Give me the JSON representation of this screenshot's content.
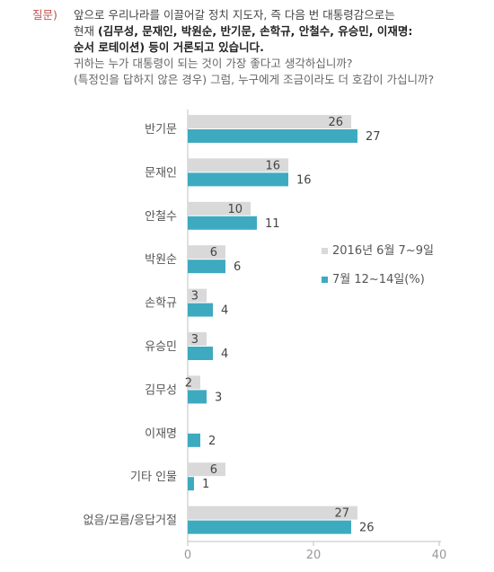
{
  "question": {
    "prefix": "질문)",
    "line1": "앞으로 우리나라를 이끌어갈 정치 지도자, 즉 다음 번 대통령감으로는",
    "line2_a": "현재 ",
    "line2_b": "(김무성, 문재인, 박원순, 반기문, 손학규, 안철수, 유승민, 이재명:",
    "line3": "순서 로테이션) 등이 거론되고 있습니다.",
    "line4": "귀하는 누가 대통령이 되는 것이 가장 좋다고 생각하십니까?",
    "line5": "(특정인을 답하지 않은 경우) 그럼, 누구에게 조금이라도 더 호감이 가십니까?"
  },
  "chart_data": {
    "type": "bar",
    "orientation": "horizontal",
    "categories": [
      "반기문",
      "문재인",
      "안철수",
      "박원순",
      "손학규",
      "유승민",
      "김무성",
      "이재명",
      "기타 인물",
      "없음/모름/응답거절"
    ],
    "series": [
      {
        "name": "2016년 6월 7~9일",
        "color": "#d9d9d9",
        "values": [
          26,
          16,
          10,
          6,
          3,
          3,
          2,
          null,
          6,
          27
        ]
      },
      {
        "name": "7월 12~14일(%)",
        "color": "#3daac0",
        "values": [
          27,
          16,
          11,
          6,
          4,
          4,
          3,
          2,
          1,
          26
        ]
      }
    ],
    "xlim": [
      0,
      40
    ],
    "xticks": [
      0,
      20,
      40
    ],
    "grid": false,
    "legend_position": "right-middle",
    "axis_color": "#c0c0c0"
  }
}
